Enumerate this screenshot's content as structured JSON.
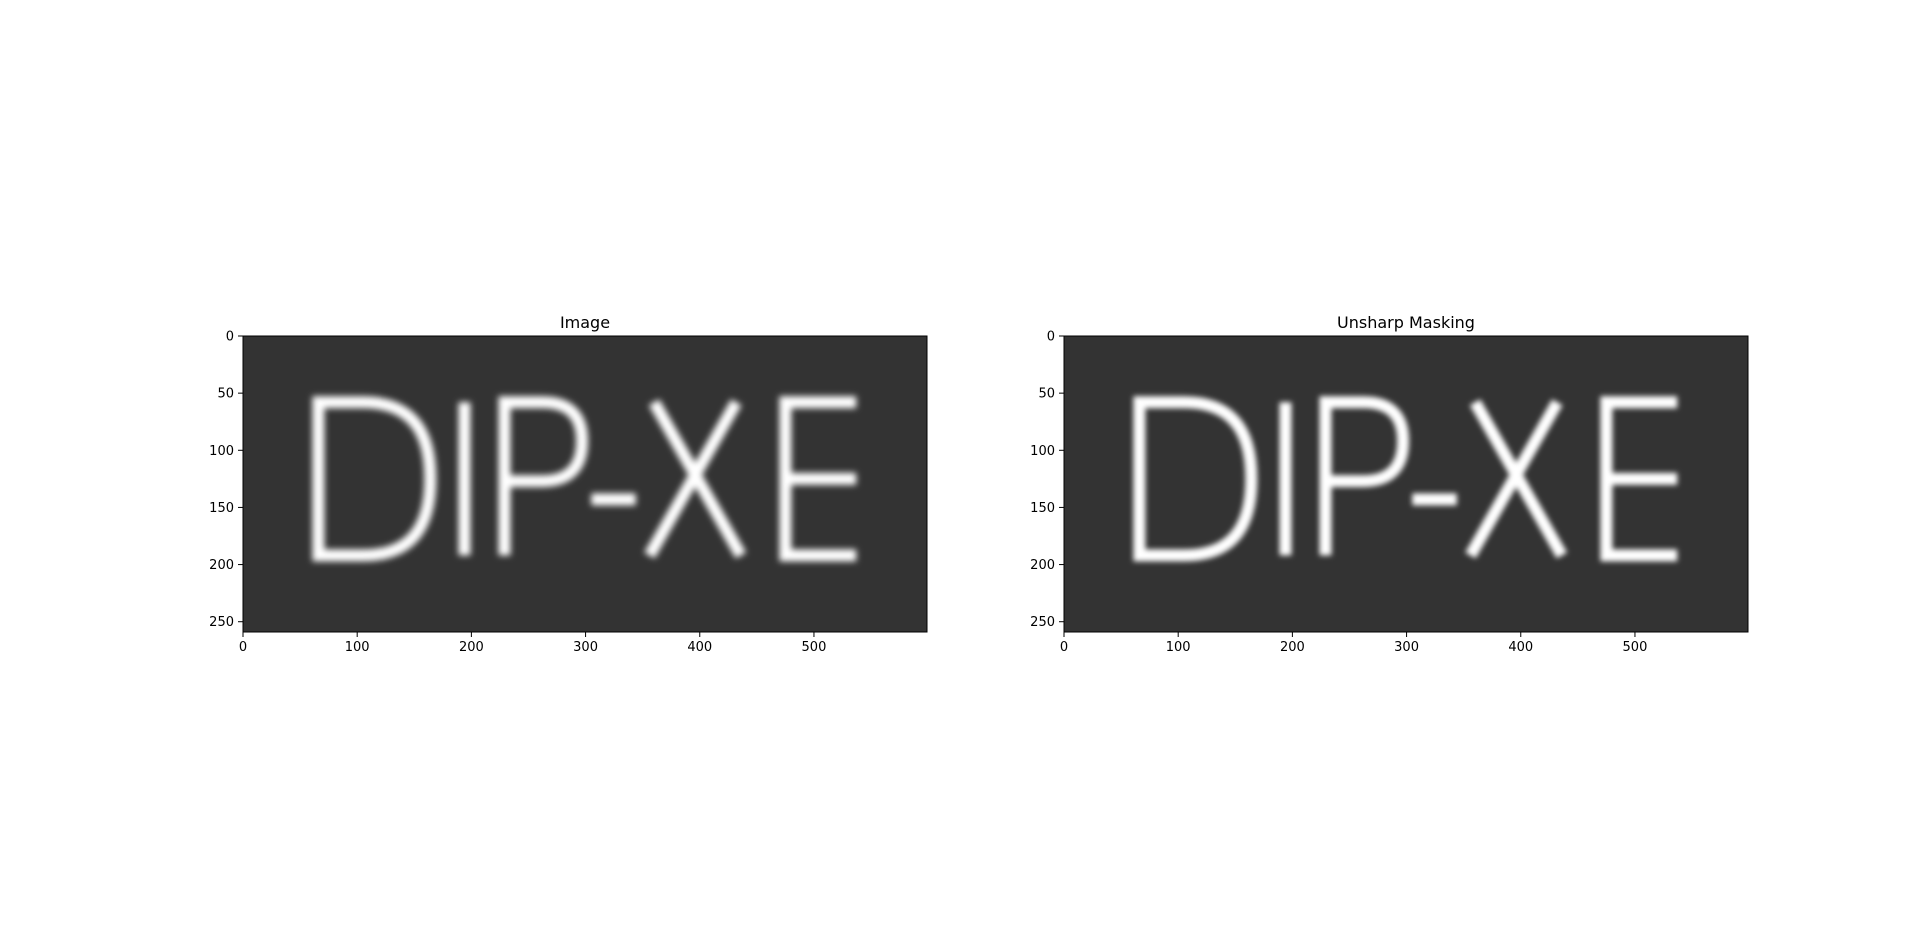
{
  "colors": {
    "figure_background": "#ffffff",
    "image_background": "#333333",
    "text_light": "#ffffff",
    "axis": "#000000"
  },
  "chart_data": [
    {
      "type": "image",
      "title": "Image",
      "xlim": [
        0,
        599
      ],
      "ylim": [
        259,
        0
      ],
      "xticks": [
        0,
        100,
        200,
        300,
        400,
        500
      ],
      "yticks": [
        0,
        50,
        100,
        150,
        200,
        250
      ],
      "content_text": "DIP-XE",
      "blurred": true
    },
    {
      "type": "image",
      "title": "Unsharp Masking",
      "xlim": [
        0,
        599
      ],
      "ylim": [
        259,
        0
      ],
      "xticks": [
        0,
        100,
        200,
        300,
        400,
        500
      ],
      "yticks": [
        0,
        50,
        100,
        150,
        200,
        250
      ],
      "content_text": "DIP-XE",
      "blurred": true
    }
  ]
}
